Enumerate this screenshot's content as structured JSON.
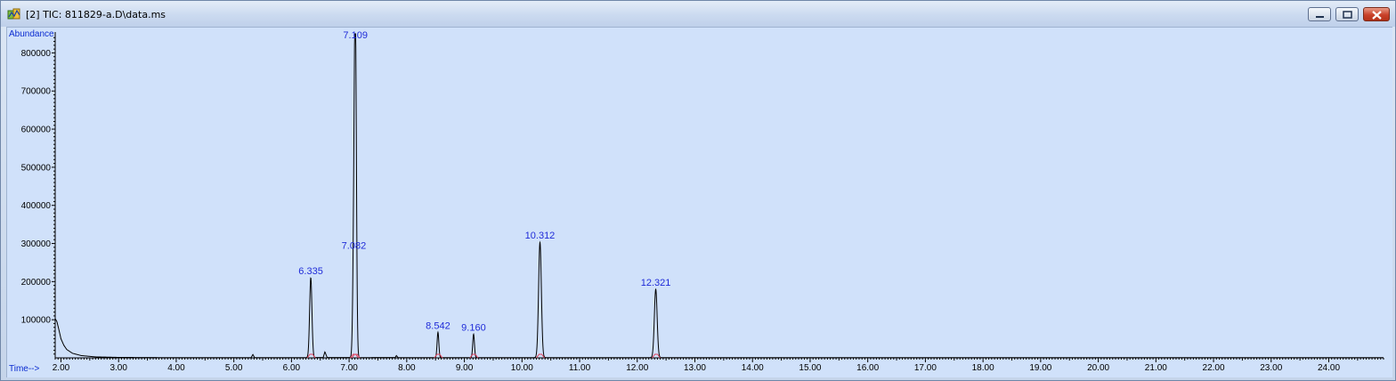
{
  "window": {
    "title": "[2] TIC: 811829-a.D\\data.ms",
    "icon": "chromatogram-app-icon",
    "controls": [
      "minimize-icon",
      "restore-icon",
      "close-icon"
    ]
  },
  "colors": {
    "plot_background": "#d0e1fa",
    "trace": "#000000",
    "peak_label": "#1f2bd8",
    "axis_title": "#0a2bd0",
    "integration_mark": "#e0405a"
  },
  "chart_data": {
    "type": "line",
    "ylabel": "Abundance",
    "xlabel": "Time-->",
    "xlim": [
      1.9,
      24.95
    ],
    "ylim": [
      0,
      850000
    ],
    "x_ticks": [
      "2.00",
      "3.00",
      "4.00",
      "5.00",
      "6.00",
      "7.00",
      "8.00",
      "9.00",
      "10.00",
      "11.00",
      "12.00",
      "13.00",
      "14.00",
      "15.00",
      "16.00",
      "17.00",
      "18.00",
      "19.00",
      "20.00",
      "21.00",
      "22.00",
      "23.00",
      "24.00"
    ],
    "y_ticks": [
      "100000",
      "200000",
      "300000",
      "400000",
      "500000",
      "600000",
      "700000",
      "800000"
    ],
    "baseline": [
      [
        1.9,
        103000
      ],
      [
        1.93,
        95000
      ],
      [
        1.97,
        70000
      ],
      [
        2.0,
        50000
      ],
      [
        2.05,
        33000
      ],
      [
        2.1,
        22000
      ],
      [
        2.2,
        12000
      ],
      [
        2.35,
        6000
      ],
      [
        2.6,
        2500
      ],
      [
        3.0,
        1200
      ],
      [
        4.0,
        500
      ],
      [
        5.0,
        500
      ],
      [
        5.3,
        600
      ],
      [
        5.33,
        9000
      ],
      [
        5.36,
        500
      ],
      [
        6.2,
        600
      ],
      [
        6.55,
        900
      ],
      [
        6.58,
        16000
      ],
      [
        6.62,
        800
      ],
      [
        7.3,
        700
      ],
      [
        7.8,
        900
      ],
      [
        7.82,
        6000
      ],
      [
        7.85,
        700
      ],
      [
        24.95,
        500
      ]
    ],
    "peaks": [
      {
        "label": "6.335",
        "x": 6.335,
        "y": 210000,
        "w": 0.02
      },
      {
        "label": "7.082",
        "x": 7.082,
        "y": 277000,
        "w": 0.018
      },
      {
        "label": "7.109",
        "x": 7.109,
        "y": 850000,
        "w": 0.018
      },
      {
        "label": "8.542",
        "x": 8.542,
        "y": 67000,
        "w": 0.015
      },
      {
        "label": "9.160",
        "x": 9.16,
        "y": 62000,
        "w": 0.015
      },
      {
        "label": "10.312",
        "x": 10.312,
        "y": 303000,
        "w": 0.024
      },
      {
        "label": "12.321",
        "x": 12.321,
        "y": 180000,
        "w": 0.024
      }
    ]
  }
}
